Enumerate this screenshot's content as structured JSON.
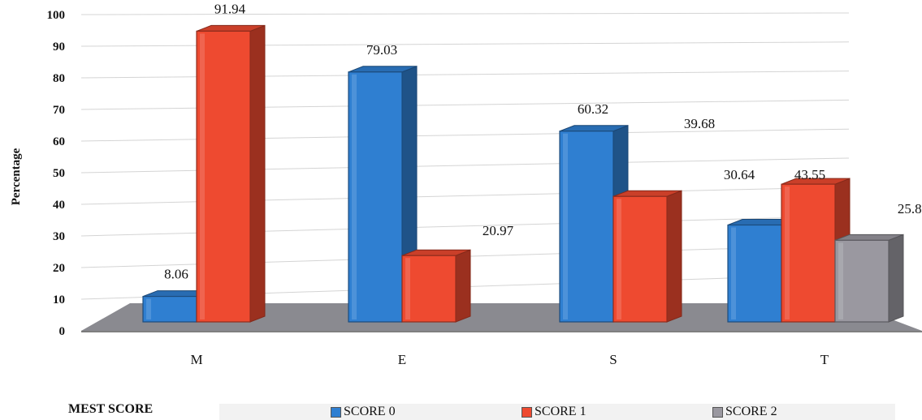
{
  "chart_data": {
    "type": "bar",
    "ylabel": "Percentage",
    "xlabel": "",
    "ylim": [
      0,
      100
    ],
    "yticks": [
      0,
      10,
      20,
      30,
      40,
      50,
      60,
      70,
      80,
      90,
      100
    ],
    "categories": [
      "M",
      "E",
      "S",
      "T"
    ],
    "grid": true,
    "legend_position": "bottom",
    "series": [
      {
        "name": "SCORE 0",
        "color": "#2f7fd1",
        "values": [
          8.06,
          79.03,
          60.32,
          30.64
        ]
      },
      {
        "name": "SCORE 1",
        "color": "#ee4a30",
        "values": [
          91.94,
          20.97,
          39.68,
          43.55
        ]
      },
      {
        "name": "SCORE 2",
        "color": "#9a98a0",
        "values": [
          null,
          null,
          null,
          25.81
        ]
      }
    ],
    "data_labels": [
      [
        "8.06",
        "79.03",
        "60.32",
        "30.64"
      ],
      [
        "91.94",
        "20.97",
        "39.68",
        "43.55"
      ],
      [
        null,
        null,
        null,
        "25.81"
      ]
    ]
  },
  "legend": {
    "title": "MEST SCORE",
    "items": [
      "SCORE 0",
      "SCORE 1",
      "SCORE 2"
    ]
  }
}
